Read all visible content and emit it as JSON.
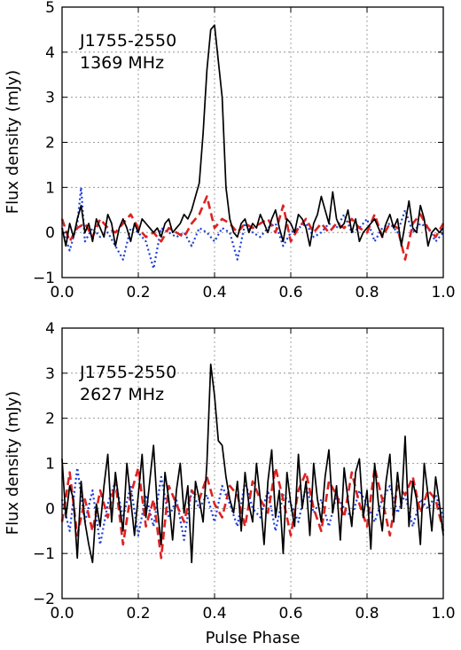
{
  "chart_data": [
    {
      "type": "line",
      "source_label": "J1755-2550",
      "frequency_label": "1369 MHz",
      "xlabel": "",
      "ylabel": "Flux density (mJy)",
      "xlim": [
        0.0,
        1.0
      ],
      "ylim": [
        -1,
        5
      ],
      "xticks": [
        "0.0",
        "0.2",
        "0.4",
        "0.6",
        "0.8",
        "1.0"
      ],
      "yticks": [
        "−1",
        "0",
        "1",
        "2",
        "3",
        "4",
        "5"
      ],
      "grid": true,
      "series": [
        {
          "color": "#000000",
          "style": "solid",
          "x": [
            0.0,
            0.01,
            0.02,
            0.03,
            0.04,
            0.05,
            0.06,
            0.07,
            0.08,
            0.09,
            0.1,
            0.11,
            0.12,
            0.13,
            0.14,
            0.15,
            0.16,
            0.17,
            0.18,
            0.19,
            0.2,
            0.21,
            0.22,
            0.23,
            0.24,
            0.25,
            0.26,
            0.27,
            0.28,
            0.29,
            0.3,
            0.31,
            0.32,
            0.33,
            0.34,
            0.35,
            0.36,
            0.37,
            0.38,
            0.39,
            0.4,
            0.41,
            0.42,
            0.43,
            0.44,
            0.45,
            0.46,
            0.47,
            0.48,
            0.49,
            0.5,
            0.51,
            0.52,
            0.53,
            0.54,
            0.55,
            0.56,
            0.57,
            0.58,
            0.59,
            0.6,
            0.61,
            0.62,
            0.63,
            0.64,
            0.65,
            0.66,
            0.67,
            0.68,
            0.69,
            0.7,
            0.71,
            0.72,
            0.73,
            0.74,
            0.75,
            0.76,
            0.77,
            0.78,
            0.79,
            0.8,
            0.81,
            0.82,
            0.83,
            0.84,
            0.85,
            0.86,
            0.87,
            0.88,
            0.89,
            0.9,
            0.91,
            0.92,
            0.93,
            0.94,
            0.95,
            0.96,
            0.97,
            0.98,
            0.99,
            1.0
          ],
          "y": [
            0.1,
            -0.3,
            0.2,
            -0.1,
            0.3,
            0.6,
            0.0,
            0.2,
            -0.2,
            0.3,
            0.1,
            -0.1,
            0.4,
            0.2,
            -0.3,
            0.1,
            0.3,
            0.1,
            -0.2,
            0.2,
            0.0,
            0.3,
            0.2,
            0.1,
            0.0,
            0.1,
            -0.1,
            0.2,
            0.3,
            0.0,
            0.1,
            0.2,
            0.4,
            0.3,
            0.5,
            0.8,
            1.1,
            2.2,
            3.6,
            4.5,
            4.6,
            3.8,
            3.0,
            1.0,
            0.3,
            0.0,
            -0.1,
            0.2,
            0.3,
            0.0,
            0.2,
            0.1,
            0.4,
            0.2,
            0.0,
            0.3,
            0.5,
            0.1,
            -0.2,
            0.3,
            0.2,
            0.0,
            0.4,
            0.3,
            0.1,
            -0.3,
            0.2,
            0.4,
            0.8,
            0.5,
            0.2,
            0.9,
            0.3,
            0.1,
            0.2,
            0.5,
            0.0,
            0.3,
            -0.2,
            0.0,
            0.1,
            0.2,
            0.3,
            0.1,
            -0.1,
            0.2,
            0.4,
            0.1,
            0.3,
            -0.3,
            0.2,
            0.7,
            0.1,
            0.0,
            0.6,
            0.3,
            -0.3,
            0.0,
            0.1,
            0.0,
            0.1
          ]
        },
        {
          "color": "#dd2222",
          "style": "dashed",
          "x": [
            0.0,
            0.02,
            0.04,
            0.06,
            0.08,
            0.1,
            0.12,
            0.14,
            0.16,
            0.18,
            0.2,
            0.22,
            0.24,
            0.26,
            0.28,
            0.3,
            0.32,
            0.34,
            0.36,
            0.38,
            0.4,
            0.42,
            0.44,
            0.46,
            0.48,
            0.5,
            0.52,
            0.54,
            0.56,
            0.58,
            0.6,
            0.62,
            0.64,
            0.66,
            0.68,
            0.7,
            0.72,
            0.74,
            0.76,
            0.78,
            0.8,
            0.82,
            0.84,
            0.86,
            0.88,
            0.9,
            0.92,
            0.94,
            0.96,
            0.98,
            1.0
          ],
          "y": [
            0.3,
            -0.2,
            0.1,
            0.2,
            -0.1,
            0.3,
            0.1,
            0.0,
            0.2,
            0.4,
            0.1,
            -0.1,
            0.0,
            -0.2,
            0.1,
            0.0,
            -0.1,
            0.2,
            0.4,
            0.8,
            0.1,
            0.3,
            0.2,
            0.0,
            0.2,
            0.1,
            0.2,
            0.3,
            0.0,
            0.6,
            -0.2,
            0.1,
            0.3,
            0.0,
            0.2,
            0.0,
            0.2,
            0.1,
            0.3,
            0.1,
            0.0,
            0.4,
            -0.1,
            0.2,
            0.1,
            -0.6,
            0.2,
            0.4,
            0.1,
            -0.1,
            0.2
          ]
        },
        {
          "color": "#1f3fd8",
          "style": "dotted",
          "x": [
            0.0,
            0.02,
            0.04,
            0.05,
            0.06,
            0.08,
            0.1,
            0.12,
            0.14,
            0.16,
            0.18,
            0.2,
            0.22,
            0.24,
            0.26,
            0.28,
            0.3,
            0.32,
            0.34,
            0.36,
            0.38,
            0.4,
            0.42,
            0.44,
            0.46,
            0.48,
            0.5,
            0.52,
            0.54,
            0.56,
            0.58,
            0.6,
            0.62,
            0.64,
            0.66,
            0.68,
            0.7,
            0.72,
            0.74,
            0.76,
            0.78,
            0.8,
            0.82,
            0.84,
            0.86,
            0.88,
            0.9,
            0.92,
            0.94,
            0.96,
            0.98,
            1.0
          ],
          "y": [
            0.1,
            -0.4,
            0.2,
            1.0,
            -0.2,
            0.1,
            -0.1,
            0.0,
            -0.3,
            -0.6,
            0.1,
            0.0,
            -0.2,
            -0.8,
            0.1,
            0.0,
            -0.1,
            0.0,
            -0.3,
            0.1,
            0.0,
            -0.2,
            0.1,
            0.0,
            -0.6,
            0.2,
            0.0,
            -0.1,
            0.1,
            0.2,
            -0.3,
            0.0,
            0.1,
            0.2,
            -0.1,
            0.0,
            0.2,
            0.1,
            0.4,
            0.0,
            0.1,
            0.3,
            -0.2,
            0.1,
            0.2,
            0.0,
            0.5,
            0.0,
            0.2,
            0.1,
            -0.2,
            0.0
          ]
        }
      ]
    },
    {
      "type": "line",
      "source_label": "J1755-2550",
      "frequency_label": "2627 MHz",
      "xlabel": "Pulse Phase",
      "ylabel": "Flux density (mJy)",
      "xlim": [
        0.0,
        1.0
      ],
      "ylim": [
        -2,
        4
      ],
      "xticks": [
        "0.0",
        "0.2",
        "0.4",
        "0.6",
        "0.8",
        "1.0"
      ],
      "yticks": [
        "−2",
        "−1",
        "0",
        "1",
        "2",
        "3",
        "4"
      ],
      "grid": true,
      "series": [
        {
          "color": "#000000",
          "style": "solid",
          "x": [
            0.0,
            0.01,
            0.02,
            0.03,
            0.04,
            0.05,
            0.06,
            0.07,
            0.08,
            0.09,
            0.1,
            0.11,
            0.12,
            0.13,
            0.14,
            0.15,
            0.16,
            0.17,
            0.18,
            0.19,
            0.2,
            0.21,
            0.22,
            0.23,
            0.24,
            0.25,
            0.26,
            0.27,
            0.28,
            0.29,
            0.3,
            0.31,
            0.32,
            0.33,
            0.34,
            0.35,
            0.36,
            0.37,
            0.38,
            0.39,
            0.4,
            0.41,
            0.42,
            0.43,
            0.44,
            0.45,
            0.46,
            0.47,
            0.48,
            0.49,
            0.5,
            0.51,
            0.52,
            0.53,
            0.54,
            0.55,
            0.56,
            0.57,
            0.58,
            0.59,
            0.6,
            0.61,
            0.62,
            0.63,
            0.64,
            0.65,
            0.66,
            0.67,
            0.68,
            0.69,
            0.7,
            0.71,
            0.72,
            0.73,
            0.74,
            0.75,
            0.76,
            0.77,
            0.78,
            0.79,
            0.8,
            0.81,
            0.82,
            0.83,
            0.84,
            0.85,
            0.86,
            0.87,
            0.88,
            0.89,
            0.9,
            0.91,
            0.92,
            0.93,
            0.94,
            0.95,
            0.96,
            0.97,
            0.98,
            0.99,
            1.0
          ],
          "y": [
            1.1,
            -0.2,
            0.5,
            0.2,
            -1.1,
            0.6,
            -0.3,
            -0.8,
            -1.2,
            0.1,
            -0.4,
            0.5,
            1.2,
            -0.3,
            0.8,
            0.1,
            -0.5,
            1.0,
            0.2,
            -0.6,
            0.3,
            1.2,
            -0.2,
            0.6,
            1.4,
            0.0,
            -0.8,
            0.8,
            0.2,
            -0.7,
            0.4,
            1.0,
            -0.1,
            0.5,
            -1.2,
            0.6,
            0.2,
            -0.3,
            1.0,
            3.2,
            2.5,
            1.5,
            1.4,
            0.7,
            0.2,
            -0.1,
            0.6,
            -0.5,
            0.8,
            0.1,
            -0.3,
            1.0,
            0.2,
            -0.8,
            0.6,
            1.3,
            -0.2,
            0.4,
            -1.0,
            0.8,
            0.1,
            -0.4,
            1.2,
            0.0,
            0.6,
            -0.6,
            1.0,
            0.2,
            -0.3,
            0.7,
            1.3,
            -0.1,
            0.5,
            -0.7,
            0.9,
            0.2,
            -0.4,
            0.8,
            1.1,
            -0.2,
            0.4,
            -0.9,
            1.0,
            0.1,
            -0.5,
            0.6,
            1.2,
            -0.3,
            0.8,
            0.0,
            1.6,
            -0.4,
            0.6,
            0.2,
            -0.8,
            1.0,
            0.3,
            -0.5,
            0.7,
            0.1,
            -0.6
          ]
        },
        {
          "color": "#dd2222",
          "style": "dashed",
          "x": [
            0.0,
            0.02,
            0.04,
            0.06,
            0.08,
            0.1,
            0.12,
            0.14,
            0.16,
            0.18,
            0.2,
            0.22,
            0.24,
            0.26,
            0.28,
            0.3,
            0.32,
            0.34,
            0.36,
            0.38,
            0.4,
            0.42,
            0.44,
            0.46,
            0.48,
            0.5,
            0.52,
            0.54,
            0.56,
            0.58,
            0.6,
            0.62,
            0.64,
            0.66,
            0.68,
            0.7,
            0.72,
            0.74,
            0.76,
            0.78,
            0.8,
            0.82,
            0.84,
            0.86,
            0.88,
            0.9,
            0.92,
            0.94,
            0.96,
            0.98,
            1.0
          ],
          "y": [
            -0.3,
            0.8,
            -0.6,
            0.2,
            -0.5,
            0.4,
            -0.2,
            0.6,
            -0.8,
            0.3,
            0.9,
            -0.4,
            0.2,
            -1.1,
            0.5,
            0.1,
            -0.3,
            0.4,
            0.2,
            0.7,
            0.1,
            -0.2,
            0.5,
            0.3,
            -0.4,
            0.6,
            0.2,
            -0.1,
            0.9,
            0.2,
            -0.6,
            0.4,
            0.8,
            0.0,
            -0.5,
            0.6,
            0.3,
            -0.2,
            0.8,
            0.1,
            -0.4,
            0.9,
            0.2,
            -0.6,
            0.5,
            0.3,
            0.7,
            -0.1,
            0.4,
            0.2,
            -0.5
          ]
        },
        {
          "color": "#1f3fd8",
          "style": "dotted",
          "x": [
            0.0,
            0.02,
            0.04,
            0.06,
            0.08,
            0.1,
            0.12,
            0.14,
            0.16,
            0.18,
            0.2,
            0.22,
            0.24,
            0.26,
            0.28,
            0.3,
            0.32,
            0.34,
            0.36,
            0.38,
            0.4,
            0.42,
            0.44,
            0.46,
            0.48,
            0.5,
            0.52,
            0.54,
            0.56,
            0.58,
            0.6,
            0.62,
            0.64,
            0.66,
            0.68,
            0.7,
            0.72,
            0.74,
            0.76,
            0.78,
            0.8,
            0.82,
            0.84,
            0.86,
            0.88,
            0.9,
            0.92,
            0.94,
            0.96,
            0.98,
            1.0
          ],
          "y": [
            0.2,
            -0.5,
            0.9,
            -0.3,
            0.4,
            -0.8,
            0.1,
            0.6,
            -0.2,
            0.5,
            -0.6,
            0.3,
            -0.4,
            0.7,
            -0.2,
            0.2,
            -0.7,
            0.4,
            0.0,
            0.3,
            -0.3,
            0.5,
            0.1,
            -0.4,
            0.6,
            0.0,
            -0.2,
            0.4,
            -0.5,
            0.3,
            0.1,
            -0.3,
            0.5,
            -0.1,
            0.2,
            -0.4,
            0.3,
            0.0,
            -0.2,
            0.4,
            0.1,
            -0.3,
            0.2,
            0.5,
            -0.1,
            0.3,
            -0.4,
            0.2,
            0.0,
            0.3,
            -0.2
          ]
        }
      ]
    }
  ]
}
